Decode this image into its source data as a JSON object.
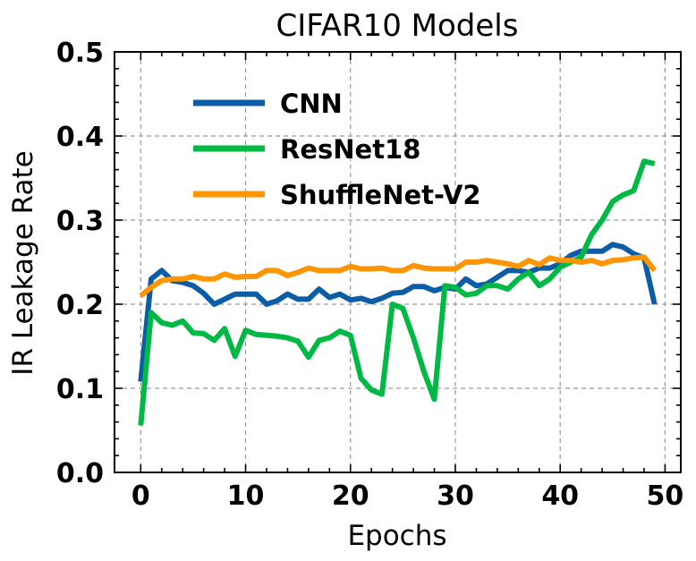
{
  "chart_data": {
    "type": "line",
    "title": "CIFAR10 Models",
    "xlabel": "Epochs",
    "ylabel": "IR Leakage Rate",
    "xlim": [
      -2.5,
      51.5
    ],
    "ylim": [
      0.0,
      0.5
    ],
    "xticks": [
      0,
      10,
      20,
      30,
      40,
      50
    ],
    "yticks": [
      0.0,
      0.1,
      0.2,
      0.3,
      0.4,
      0.5
    ],
    "xtick_labels": [
      "0",
      "10",
      "20",
      "30",
      "40",
      "50"
    ],
    "ytick_labels": [
      "0.0",
      "0.1",
      "0.2",
      "0.3",
      "0.4",
      "0.5"
    ],
    "grid": true,
    "legend_position": "upper-left",
    "x": [
      0,
      1,
      2,
      3,
      4,
      5,
      6,
      7,
      8,
      9,
      10,
      11,
      12,
      13,
      14,
      15,
      16,
      17,
      18,
      19,
      20,
      21,
      22,
      23,
      24,
      25,
      26,
      27,
      28,
      29,
      30,
      31,
      32,
      33,
      34,
      35,
      36,
      37,
      38,
      39,
      40,
      41,
      42,
      43,
      44,
      45,
      46,
      47,
      48,
      49
    ],
    "series": [
      {
        "name": "CNN",
        "color": "#0C5DA5",
        "values": [
          0.108,
          0.23,
          0.24,
          0.228,
          0.226,
          0.222,
          0.213,
          0.2,
          0.206,
          0.212,
          0.212,
          0.212,
          0.2,
          0.204,
          0.212,
          0.206,
          0.206,
          0.218,
          0.208,
          0.212,
          0.205,
          0.207,
          0.203,
          0.207,
          0.213,
          0.214,
          0.221,
          0.221,
          0.216,
          0.22,
          0.218,
          0.23,
          0.222,
          0.224,
          0.232,
          0.24,
          0.24,
          0.238,
          0.243,
          0.243,
          0.248,
          0.258,
          0.263,
          0.263,
          0.263,
          0.271,
          0.268,
          0.26,
          0.255,
          0.2
        ]
      },
      {
        "name": "ResNet18",
        "color": "#00B945",
        "values": [
          0.056,
          0.19,
          0.178,
          0.175,
          0.18,
          0.166,
          0.165,
          0.157,
          0.171,
          0.138,
          0.169,
          0.164,
          0.163,
          0.162,
          0.16,
          0.156,
          0.137,
          0.157,
          0.16,
          0.168,
          0.163,
          0.112,
          0.098,
          0.093,
          0.2,
          0.195,
          0.16,
          0.12,
          0.087,
          0.222,
          0.22,
          0.211,
          0.213,
          0.222,
          0.222,
          0.218,
          0.23,
          0.238,
          0.222,
          0.23,
          0.244,
          0.25,
          0.256,
          0.283,
          0.3,
          0.322,
          0.33,
          0.335,
          0.37,
          0.367
        ]
      },
      {
        "name": "ShuffleNet-V2",
        "color": "#FF9500",
        "values": [
          0.21,
          0.22,
          0.228,
          0.23,
          0.23,
          0.233,
          0.23,
          0.23,
          0.236,
          0.232,
          0.233,
          0.233,
          0.24,
          0.24,
          0.234,
          0.238,
          0.243,
          0.24,
          0.24,
          0.24,
          0.245,
          0.242,
          0.242,
          0.243,
          0.24,
          0.24,
          0.246,
          0.243,
          0.242,
          0.242,
          0.242,
          0.25,
          0.25,
          0.252,
          0.25,
          0.248,
          0.245,
          0.252,
          0.247,
          0.255,
          0.252,
          0.252,
          0.25,
          0.252,
          0.248,
          0.252,
          0.253,
          0.255,
          0.256,
          0.24
        ]
      }
    ]
  }
}
